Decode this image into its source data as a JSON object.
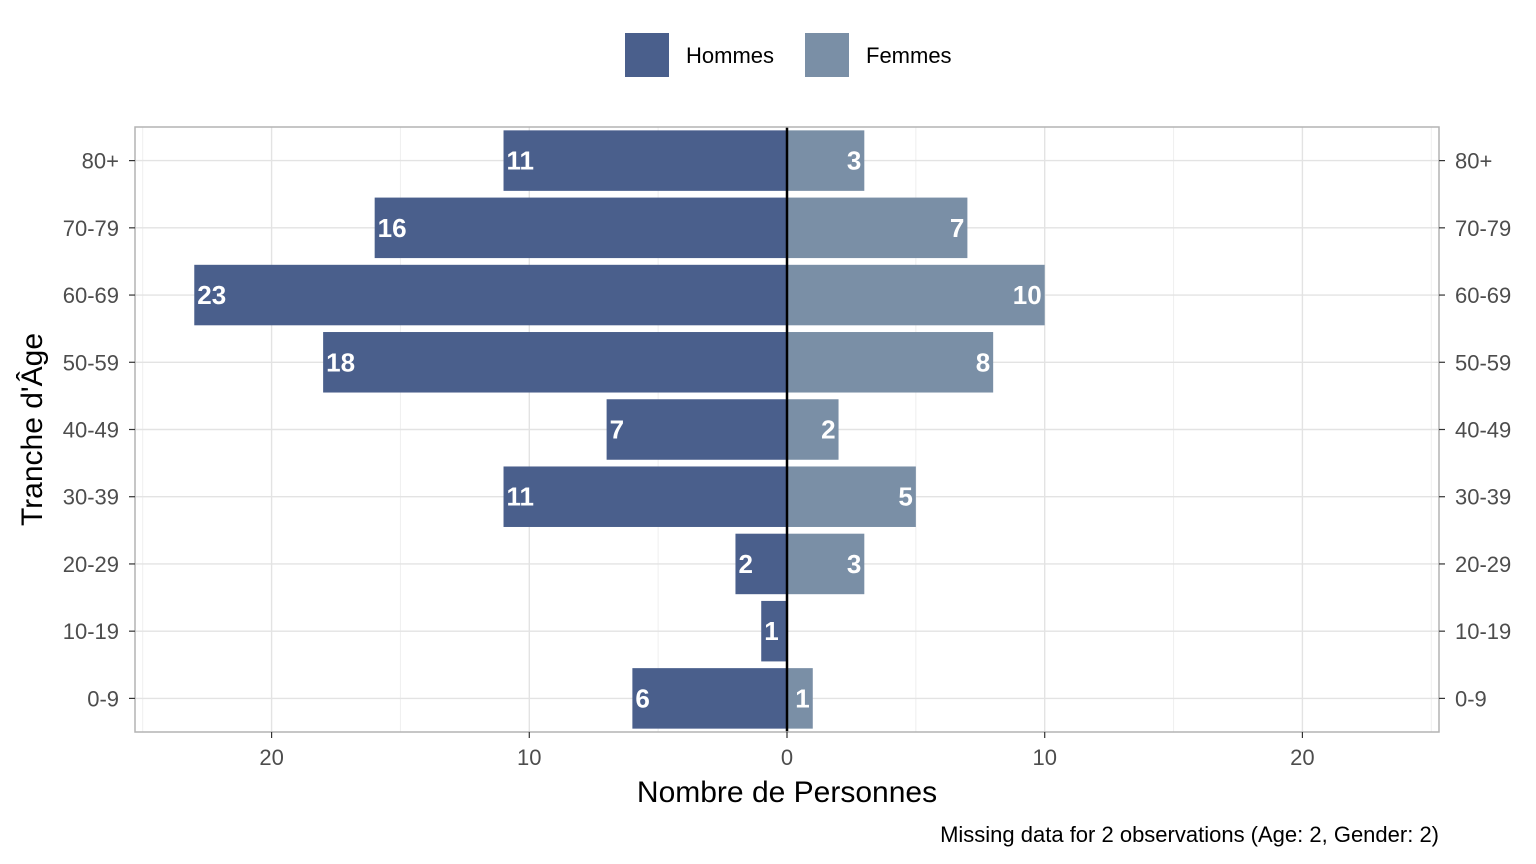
{
  "chart_data": {
    "type": "bar",
    "orientation": "horizontal",
    "subtype": "population-pyramid",
    "categories": [
      "0-9",
      "10-19",
      "20-29",
      "30-39",
      "40-49",
      "50-59",
      "60-69",
      "70-79",
      "80+"
    ],
    "series": [
      {
        "name": "Hommes",
        "values": [
          6,
          1,
          2,
          11,
          7,
          18,
          23,
          16,
          11
        ],
        "side": "left",
        "color": "#4a5f8c"
      },
      {
        "name": "Femmes",
        "values": [
          1,
          0,
          3,
          5,
          2,
          8,
          10,
          7,
          3
        ],
        "side": "right",
        "color": "#7a8fa6"
      }
    ],
    "xlabel": "Nombre de Personnes",
    "ylabel": "Tranche d'Âge",
    "xlim": [
      -25.3,
      25.3
    ],
    "xticks": [
      -20,
      -10,
      0,
      10,
      20
    ],
    "xtick_labels": [
      "20",
      "10",
      "0",
      "10",
      "20"
    ],
    "grid": true,
    "legend_position": "top",
    "caption": "Missing data for 2 observations (Age: 2, Gender: 2)"
  }
}
